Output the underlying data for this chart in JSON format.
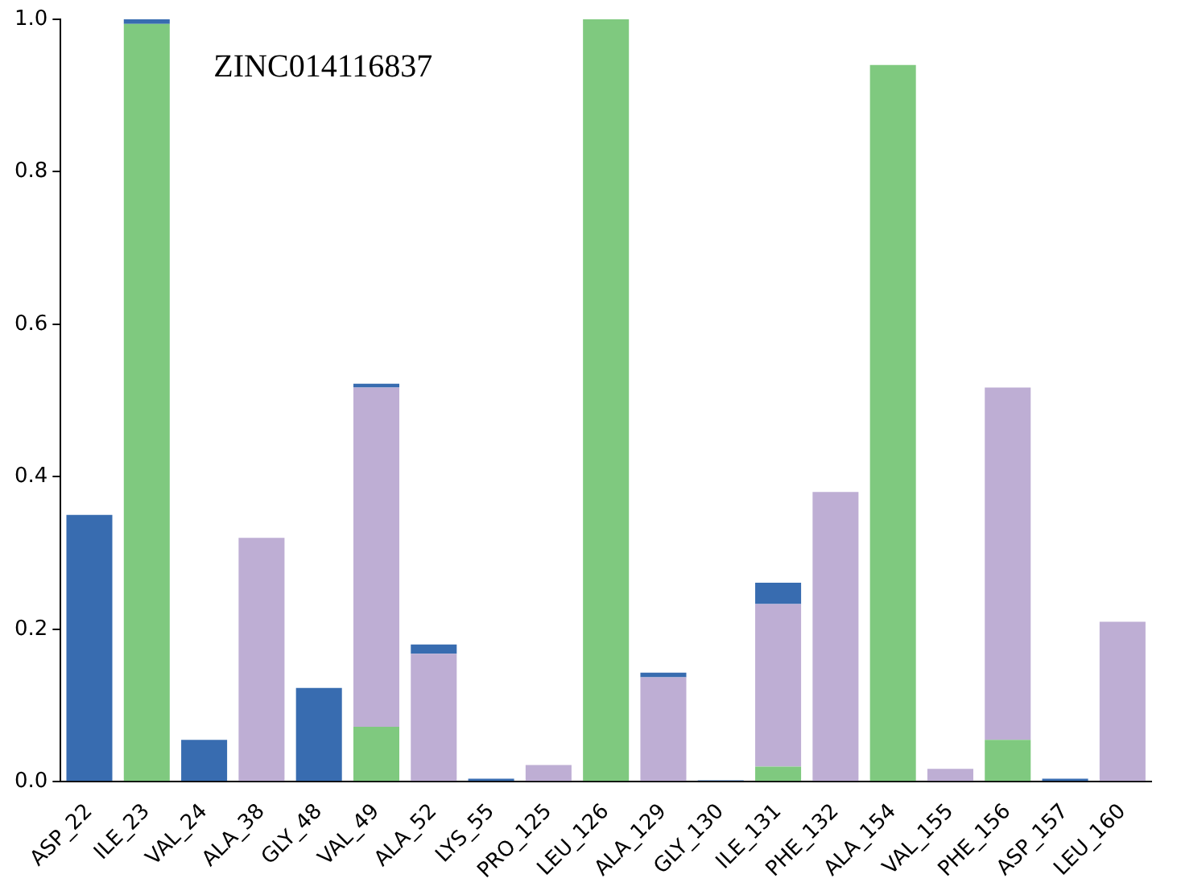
{
  "chart_data": {
    "type": "bar",
    "stacked": true,
    "annotations": [
      "ZINC014116837"
    ],
    "categories": [
      "ASP_22",
      "ILE_23",
      "VAL_24",
      "ALA_38",
      "GLY_48",
      "VAL_49",
      "ALA_52",
      "LYS_55",
      "PRO_125",
      "LEU_126",
      "ALA_129",
      "GLY_130",
      "ILE_131",
      "PHE_132",
      "ALA_154",
      "VAL_155",
      "PHE_156",
      "ASP_157",
      "LEU_160"
    ],
    "series": [
      {
        "color": "#7fc97f",
        "values": [
          0,
          0.994,
          0,
          0,
          0,
          0.072,
          0,
          0,
          0,
          1.0,
          0,
          0,
          0.02,
          0,
          0.94,
          0,
          0.055,
          0,
          0
        ]
      },
      {
        "color": "#beaed4",
        "values": [
          0,
          0,
          0,
          0.32,
          0,
          0.445,
          0.168,
          0,
          0.022,
          0,
          0.137,
          0,
          0.213,
          0.38,
          0,
          0.017,
          0.462,
          0,
          0.21
        ]
      },
      {
        "color": "#386cb0",
        "values": [
          0.35,
          0.006,
          0.055,
          0,
          0.123,
          0.005,
          0.012,
          0.004,
          0,
          0,
          0.006,
          0.002,
          0.028,
          0,
          0,
          0,
          0,
          0.004,
          0
        ]
      }
    ],
    "ylim": [
      0,
      1.0
    ],
    "yticks": [
      {
        "value": 0,
        "label": "0.0"
      },
      {
        "value": 0.2,
        "label": "0.2"
      },
      {
        "value": 0.4,
        "label": "0.4"
      },
      {
        "value": 0.6,
        "label": "0.6"
      },
      {
        "value": 0.8,
        "label": "0.8"
      },
      {
        "value": 1.0,
        "label": "1.0"
      }
    ],
    "grid": false,
    "legend": false
  }
}
